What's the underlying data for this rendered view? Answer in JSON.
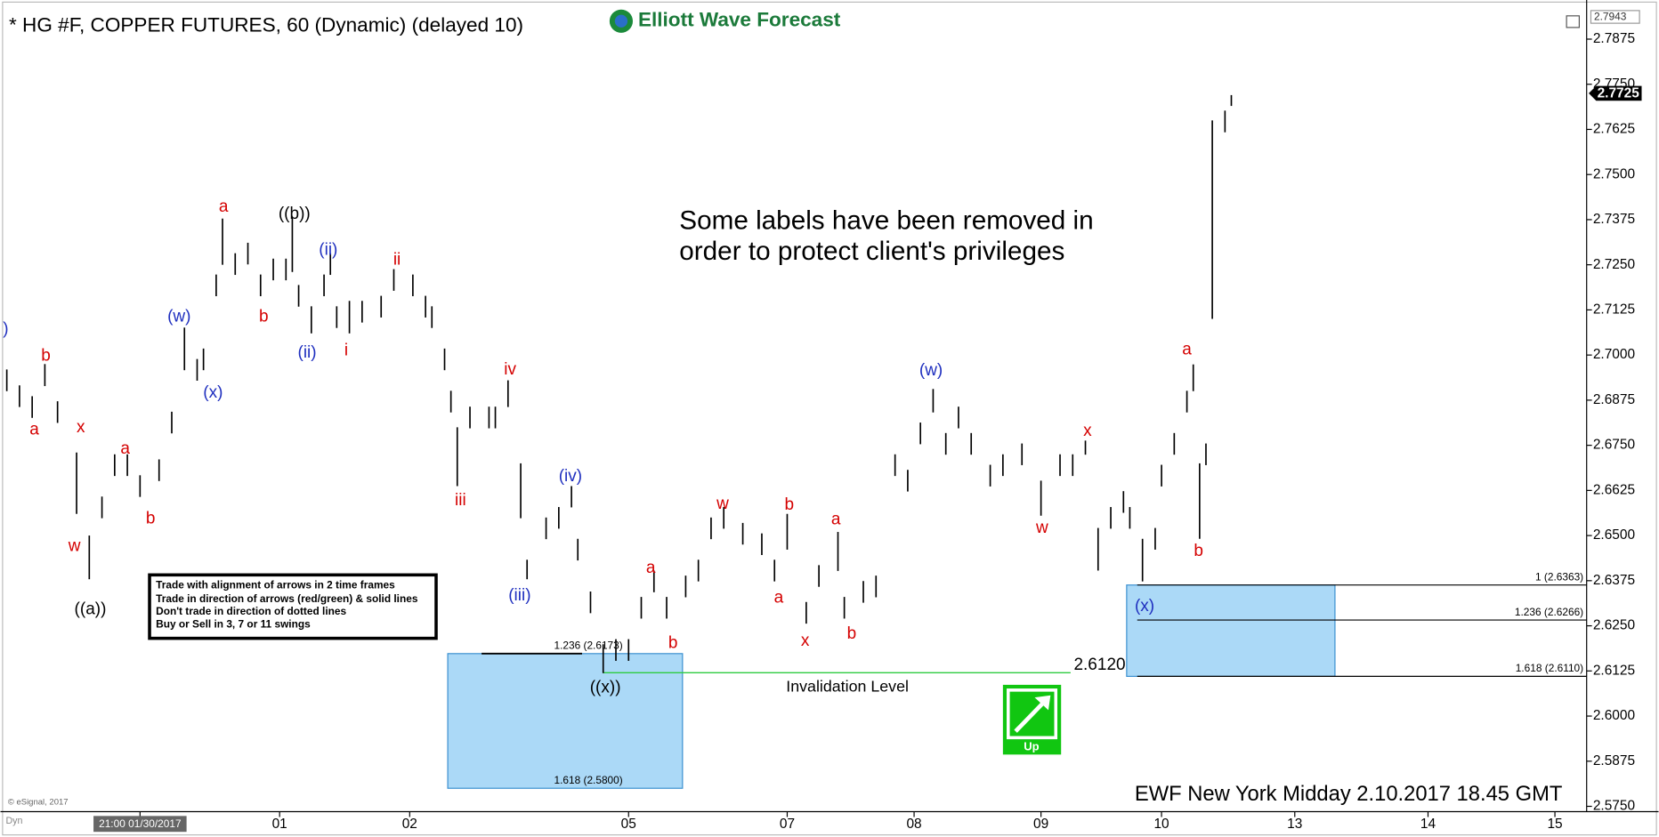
{
  "chart_data": {
    "type": "ohlc",
    "title": "* HG #F, COPPER FUTURES, 60 (Dynamic) (delayed 10)",
    "brand": "Elliott Wave Forecast",
    "note": [
      "Some labels have been removed in",
      "order to protect client's privileges"
    ],
    "rules": [
      "Trade with alignment of arrows in 2 time frames",
      "Trade in direction of arrows (red/green) & solid lines",
      "Don't trade in direction of dotted lines",
      "Buy or Sell in 3, 7 or 11 swings"
    ],
    "footer": "EWF New York Midday 2.10.2017 18.45 GMT",
    "copyright": "© eSignal, 2017",
    "corner_label": "Dyn",
    "signal": "Up",
    "color": "#000000",
    "x": [
      1,
      3,
      5,
      7,
      9,
      12,
      14,
      16,
      18,
      20,
      22,
      25,
      27,
      29,
      31,
      32,
      34,
      35,
      37,
      39,
      41,
      43,
      45,
      46,
      47,
      49,
      51,
      52,
      53,
      55,
      57,
      60,
      62,
      65,
      67,
      68,
      70,
      71,
      72,
      74,
      77,
      78,
      80,
      82,
      83,
      86,
      88,
      90,
      91,
      93,
      95,
      97,
      99,
      101,
      103,
      105,
      108,
      110,
      112,
      114,
      117,
      120,
      122,
      124,
      127,
      129,
      132,
      133,
      136,
      138,
      141,
      143,
      145,
      147,
      149,
      151,
      153,
      156,
      158,
      161,
      164,
      167,
      169,
      171,
      173,
      175,
      177,
      178,
      180,
      182,
      183,
      185,
      187,
      188,
      189,
      190,
      191,
      193,
      194
    ],
    "high": [
      2.696,
      2.6916,
      2.6886,
      2.6975,
      2.6872,
      2.673,
      2.65,
      2.6608,
      2.6725,
      2.6725,
      2.6667,
      2.6711,
      2.6843,
      2.7076,
      2.6989,
      2.7018,
      2.7223,
      2.7378,
      2.7282,
      2.7311,
      2.7223,
      2.7267,
      2.7267,
      2.7383,
      2.7194,
      2.7135,
      2.7223,
      2.7282,
      2.7135,
      2.715,
      2.715,
      2.7164,
      2.7238,
      2.7223,
      2.7164,
      2.7135,
      2.7018,
      2.6901,
      2.68,
      2.6857,
      2.6857,
      2.6857,
      2.693,
      2.67,
      2.6433,
      2.655,
      2.6579,
      2.6637,
      2.6491,
      2.6345,
      2.6199,
      2.6213,
      2.6213,
      2.633,
      2.6403,
      2.633,
      2.6389,
      2.6433,
      2.655,
      2.6579,
      2.6535,
      2.6506,
      2.6433,
      2.656,
      2.6316,
      2.6418,
      2.651,
      2.633,
      2.6374,
      2.6389,
      2.6725,
      2.6682,
      2.6813,
      2.6906,
      2.6784,
      2.6857,
      2.6784,
      2.6696,
      2.6725,
      2.6755,
      2.6652,
      2.6725,
      2.6725,
      2.6763,
      2.6521,
      2.6579,
      2.6623,
      2.6579,
      2.6491,
      2.6521,
      2.6696,
      2.6784,
      2.6901,
      2.6974,
      2.67,
      2.6755,
      2.765,
      2.7677,
      2.772
    ],
    "low": [
      2.69,
      2.6856,
      2.6826,
      2.6914,
      2.6812,
      2.656,
      2.6379,
      2.6548,
      2.6665,
      2.6665,
      2.6607,
      2.6651,
      2.6783,
      2.6958,
      2.6929,
      2.6958,
      2.7163,
      2.725,
      2.7222,
      2.7251,
      2.7163,
      2.7207,
      2.7207,
      2.723,
      2.7134,
      2.706,
      2.7163,
      2.7222,
      2.7075,
      2.706,
      2.709,
      2.7104,
      2.7178,
      2.7163,
      2.7104,
      2.7075,
      2.6958,
      2.6841,
      2.6637,
      2.6797,
      2.6797,
      2.6797,
      2.6856,
      2.6548,
      2.6379,
      2.649,
      2.6519,
      2.6578,
      2.6431,
      2.6285,
      2.6119,
      2.6153,
      2.6153,
      2.627,
      2.6343,
      2.627,
      2.6329,
      2.6373,
      2.649,
      2.6519,
      2.6475,
      2.6446,
      2.6373,
      2.6461,
      2.6256,
      2.6358,
      2.6402,
      2.627,
      2.6314,
      2.6329,
      2.6665,
      2.6622,
      2.6753,
      2.6841,
      2.6724,
      2.6797,
      2.6724,
      2.6636,
      2.6665,
      2.6695,
      2.6555,
      2.6665,
      2.6665,
      2.6724,
      2.6403,
      2.6519,
      2.6563,
      2.6519,
      2.6373,
      2.6461,
      2.6636,
      2.6724,
      2.6841,
      2.69,
      2.6491,
      2.6695,
      2.71,
      2.7617,
      2.769
    ],
    "xlim": [
      0,
      250
    ],
    "xticks": [
      {
        "value": 22,
        "label": "21:00 01/30/2017"
      },
      {
        "value": 44,
        "label": "01"
      },
      {
        "value": 64.5,
        "label": "02"
      },
      {
        "value": 99,
        "label": "05"
      },
      {
        "value": 124,
        "label": "07"
      },
      {
        "value": 144,
        "label": "08"
      },
      {
        "value": 164,
        "label": "09"
      },
      {
        "value": 183,
        "label": "10"
      },
      {
        "value": 204,
        "label": "13"
      },
      {
        "value": 225,
        "label": "14"
      },
      {
        "value": 245,
        "label": "15"
      }
    ],
    "ylim": [
      2.5735,
      2.7943
    ],
    "yticks": [
      {
        "value": 2.575,
        "label": "2.5750"
      },
      2.5875,
      {
        "value": 2.6,
        "label": "2.6000"
      },
      2.6125,
      {
        "value": 2.625,
        "label": "2.6250"
      },
      2.6375,
      {
        "value": 2.65,
        "label": "2.6500"
      },
      2.6625,
      {
        "value": 2.675,
        "label": "2.6750"
      },
      2.6875,
      {
        "value": 2.7,
        "label": "2.7000"
      },
      2.7125,
      {
        "value": 2.725,
        "label": "2.7250"
      },
      2.7375,
      {
        "value": 2.75,
        "label": "2.7500"
      },
      2.7625,
      {
        "value": 2.775,
        "label": "2.7750"
      },
      2.7875
    ],
    "last_price": {
      "value": 2.7725,
      "label": "2.7725"
    },
    "invalidation": {
      "label": "Invalidation Level",
      "level": {
        "value": 2.612,
        "label": "2.6120"
      }
    },
    "target_zones": [
      {
        "levels": [
          {
            "value": 2.6173,
            "label": "1.236 (2.6173)"
          },
          {
            "value": 2.58,
            "label": "1.618 (2.5800)"
          }
        ]
      },
      {
        "levels": [
          {
            "value": 2.6363,
            "label": "1 (2.6363)"
          },
          {
            "value": 2.6266,
            "label": "1.236 (2.6266)"
          },
          {
            "value": 2.611,
            "label": "1.618 (2.6110)"
          }
        ]
      }
    ],
    "annotations": [
      {
        "text": ")",
        "color": "#1f2fbf"
      },
      {
        "text": "b",
        "color": "#d40000"
      },
      {
        "text": "a",
        "color": "#d40000"
      },
      {
        "text": "x",
        "color": "#d40000"
      },
      {
        "text": "w",
        "color": "#d40000"
      },
      {
        "text": "((a))",
        "color": "#000000"
      },
      {
        "text": "a",
        "color": "#d40000"
      },
      {
        "text": "b",
        "color": "#d40000"
      },
      {
        "text": "(w)",
        "color": "#1f2fbf"
      },
      {
        "text": "(x)",
        "color": "#1f2fbf"
      },
      {
        "text": "a",
        "color": "#d40000"
      },
      {
        "text": "b",
        "color": "#d40000"
      },
      {
        "text": "((b))",
        "color": "#000000"
      },
      {
        "text": "(ii)",
        "color": "#1f2fbf"
      },
      {
        "text": "(ii)",
        "color": "#1f2fbf"
      },
      {
        "text": "i",
        "color": "#d40000"
      },
      {
        "text": "ii",
        "color": "#d40000"
      },
      {
        "text": "iii",
        "color": "#d40000"
      },
      {
        "text": "iv",
        "color": "#d40000"
      },
      {
        "text": "(iii)",
        "color": "#1f2fbf"
      },
      {
        "text": "(iv)",
        "color": "#1f2fbf"
      },
      {
        "text": "((x))",
        "color": "#000000"
      },
      {
        "text": "a",
        "color": "#d40000"
      },
      {
        "text": "b",
        "color": "#d40000"
      },
      {
        "text": "w",
        "color": "#d40000"
      },
      {
        "text": "b",
        "color": "#d40000"
      },
      {
        "text": "a",
        "color": "#d40000"
      },
      {
        "text": "x",
        "color": "#d40000"
      },
      {
        "text": "a",
        "color": "#d40000"
      },
      {
        "text": "b",
        "color": "#d40000"
      },
      {
        "text": "(w)",
        "color": "#1f2fbf"
      },
      {
        "text": "w",
        "color": "#d40000"
      },
      {
        "text": "x",
        "color": "#d40000"
      },
      {
        "text": "(x)",
        "color": "#1f2fbf"
      },
      {
        "text": "a",
        "color": "#d40000"
      },
      {
        "text": "b",
        "color": "#d40000"
      }
    ]
  }
}
